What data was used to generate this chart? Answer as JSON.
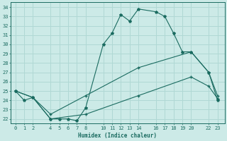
{
  "title": "",
  "xlabel": "Humidex (Indice chaleur)",
  "bg_color": "#cceae7",
  "grid_color": "#b0d8d4",
  "line_color": "#1a6b60",
  "x_ticks": [
    0,
    1,
    2,
    4,
    5,
    6,
    7,
    8,
    10,
    11,
    12,
    13,
    14,
    16,
    17,
    18,
    19,
    20,
    22,
    23
  ],
  "xlim": [
    -0.5,
    23.8
  ],
  "ylim": [
    21.5,
    34.5
  ],
  "y_ticks": [
    22,
    23,
    24,
    25,
    26,
    27,
    28,
    29,
    30,
    31,
    32,
    33,
    34
  ],
  "series1_x": [
    0,
    1,
    2,
    4,
    5,
    6,
    7,
    8,
    10,
    11,
    12,
    13,
    14,
    16,
    17,
    18,
    19,
    20,
    22,
    23
  ],
  "series1_y": [
    25.0,
    24.0,
    24.3,
    22.0,
    22.0,
    22.0,
    21.8,
    23.2,
    30.0,
    31.2,
    33.2,
    32.5,
    33.8,
    33.5,
    33.0,
    31.2,
    29.2,
    29.2,
    27.0,
    24.0
  ],
  "series2_x": [
    0,
    2,
    4,
    8,
    14,
    20,
    22,
    23
  ],
  "series2_y": [
    25.0,
    24.3,
    22.5,
    24.5,
    27.5,
    29.2,
    27.0,
    24.5
  ],
  "series3_x": [
    0,
    2,
    4,
    8,
    14,
    20,
    22,
    23
  ],
  "series3_y": [
    25.0,
    24.3,
    22.0,
    22.5,
    24.5,
    26.5,
    25.5,
    24.2
  ]
}
